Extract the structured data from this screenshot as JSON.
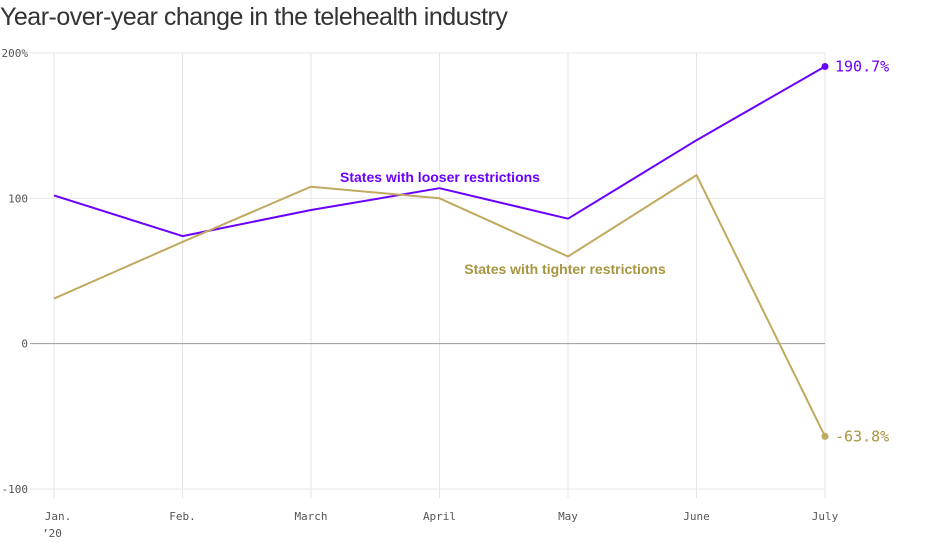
{
  "chart_data": {
    "type": "line",
    "title": "Year-over-year change in the telehealth industry",
    "categories": [
      "Jan.",
      "Feb.",
      "March",
      "April",
      "May",
      "June",
      "July"
    ],
    "year_label": "’20",
    "y_ticks": [
      "200%",
      "100",
      "0",
      "-100"
    ],
    "ylim": [
      -100,
      200
    ],
    "xlabel": "",
    "ylabel": "",
    "grid": true,
    "series": [
      {
        "name": "States with looser restrictions",
        "color": "#6a00ff",
        "values": [
          102,
          74,
          92,
          107,
          86,
          140,
          190.7
        ],
        "end_label": "190.7%"
      },
      {
        "name": "States with tighter restrictions",
        "color": "#c0aa60",
        "label_color": "#a89540",
        "values": [
          31,
          70,
          108,
          100,
          60,
          116,
          -63.8
        ],
        "end_label": "-63.8%"
      }
    ]
  }
}
